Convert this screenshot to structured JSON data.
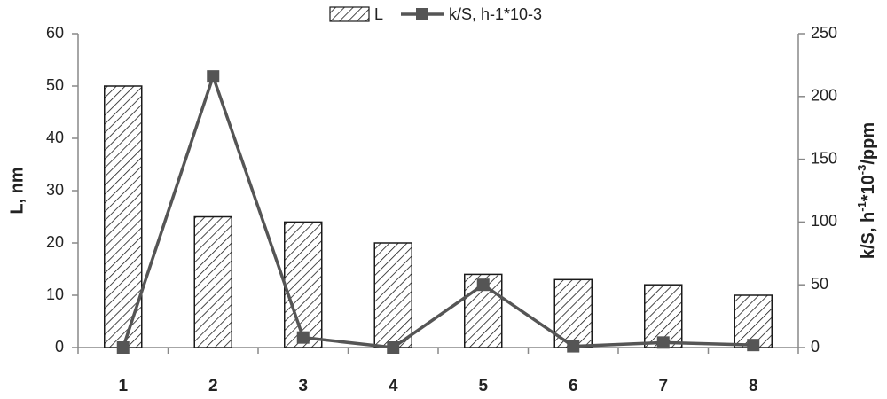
{
  "chart_data": {
    "type": "bar",
    "categories": [
      "1",
      "2",
      "3",
      "4",
      "5",
      "6",
      "7",
      "8"
    ],
    "ylabel": "L, nm",
    "y2label": [
      "k/S, h",
      "-1",
      "*10",
      "-3",
      "/ppm"
    ],
    "ylim": [
      0,
      60
    ],
    "yticks": [
      0,
      10,
      20,
      30,
      40,
      50,
      60
    ],
    "y2lim": [
      0,
      250
    ],
    "y2ticks": [
      0,
      50,
      100,
      150,
      200,
      250
    ],
    "legend": "top",
    "series": [
      {
        "name": "L",
        "type": "bar",
        "color": "#1a1a1a",
        "fill": "hatch",
        "values": [
          50,
          25,
          24,
          20,
          14,
          13,
          12,
          10
        ]
      },
      {
        "name": "k/S, h-1*10-3",
        "type": "line",
        "axis": "y2",
        "color": "#555555",
        "values": [
          0,
          216,
          8,
          0,
          50,
          1,
          4,
          2
        ]
      }
    ]
  }
}
